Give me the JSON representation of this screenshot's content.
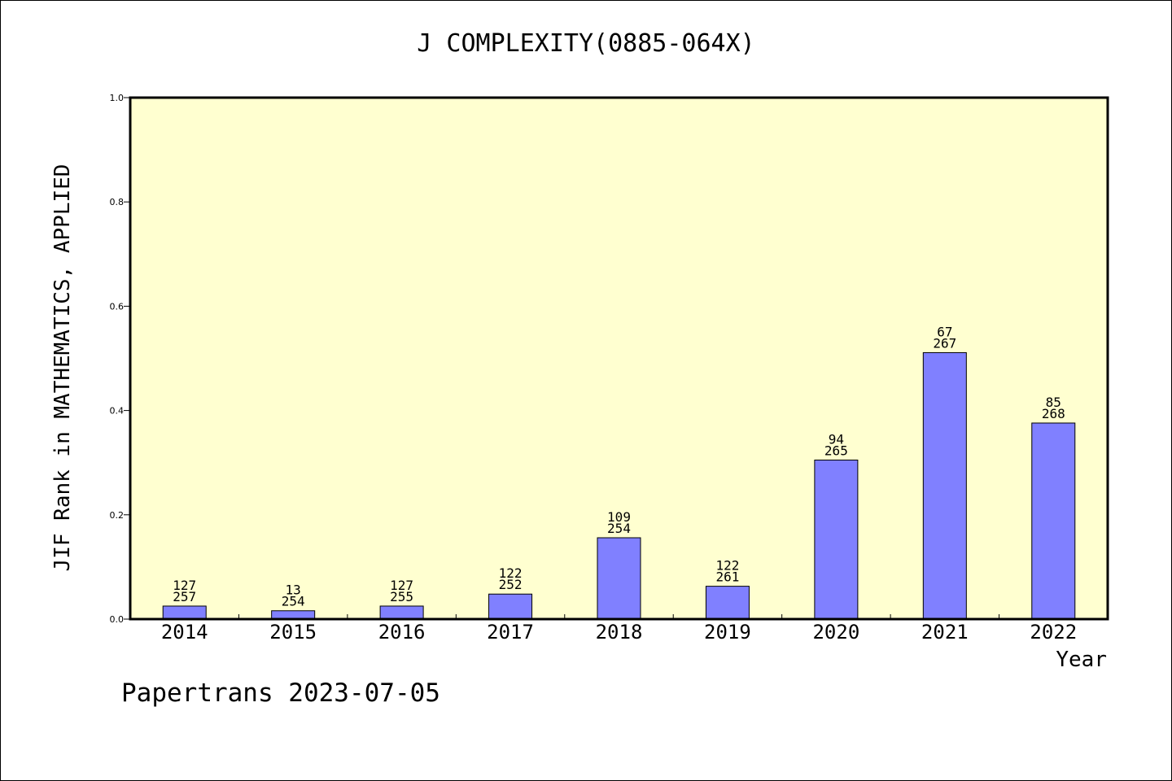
{
  "chart_data": {
    "type": "bar",
    "title": "J COMPLEXITY(0885-064X)",
    "xlabel": "Year",
    "ylabel": "JIF Rank in MATHEMATICS, APPLIED",
    "categories": [
      "2014",
      "2015",
      "2016",
      "2017",
      "2018",
      "2019",
      "2020",
      "2021",
      "2022"
    ],
    "values": [
      0.025,
      0.016,
      0.025,
      0.048,
      0.156,
      0.063,
      0.305,
      0.511,
      0.376
    ],
    "labels_top": [
      "127",
      "13",
      "127",
      "122",
      "109",
      "122",
      "94",
      "67",
      "85"
    ],
    "labels_bottom": [
      "257",
      "254",
      "255",
      "252",
      "254",
      "261",
      "265",
      "267",
      "268"
    ],
    "ylim": [
      0,
      1.0
    ],
    "yticks": [
      "0.0",
      "0.2",
      "0.4",
      "0.6",
      "0.8",
      "1.0"
    ],
    "grid": false,
    "colors": {
      "plot_bg": "#ffffd0",
      "bar": "#8080ff",
      "axis": "#000000"
    }
  },
  "footer": "Papertrans 2023-07-05"
}
